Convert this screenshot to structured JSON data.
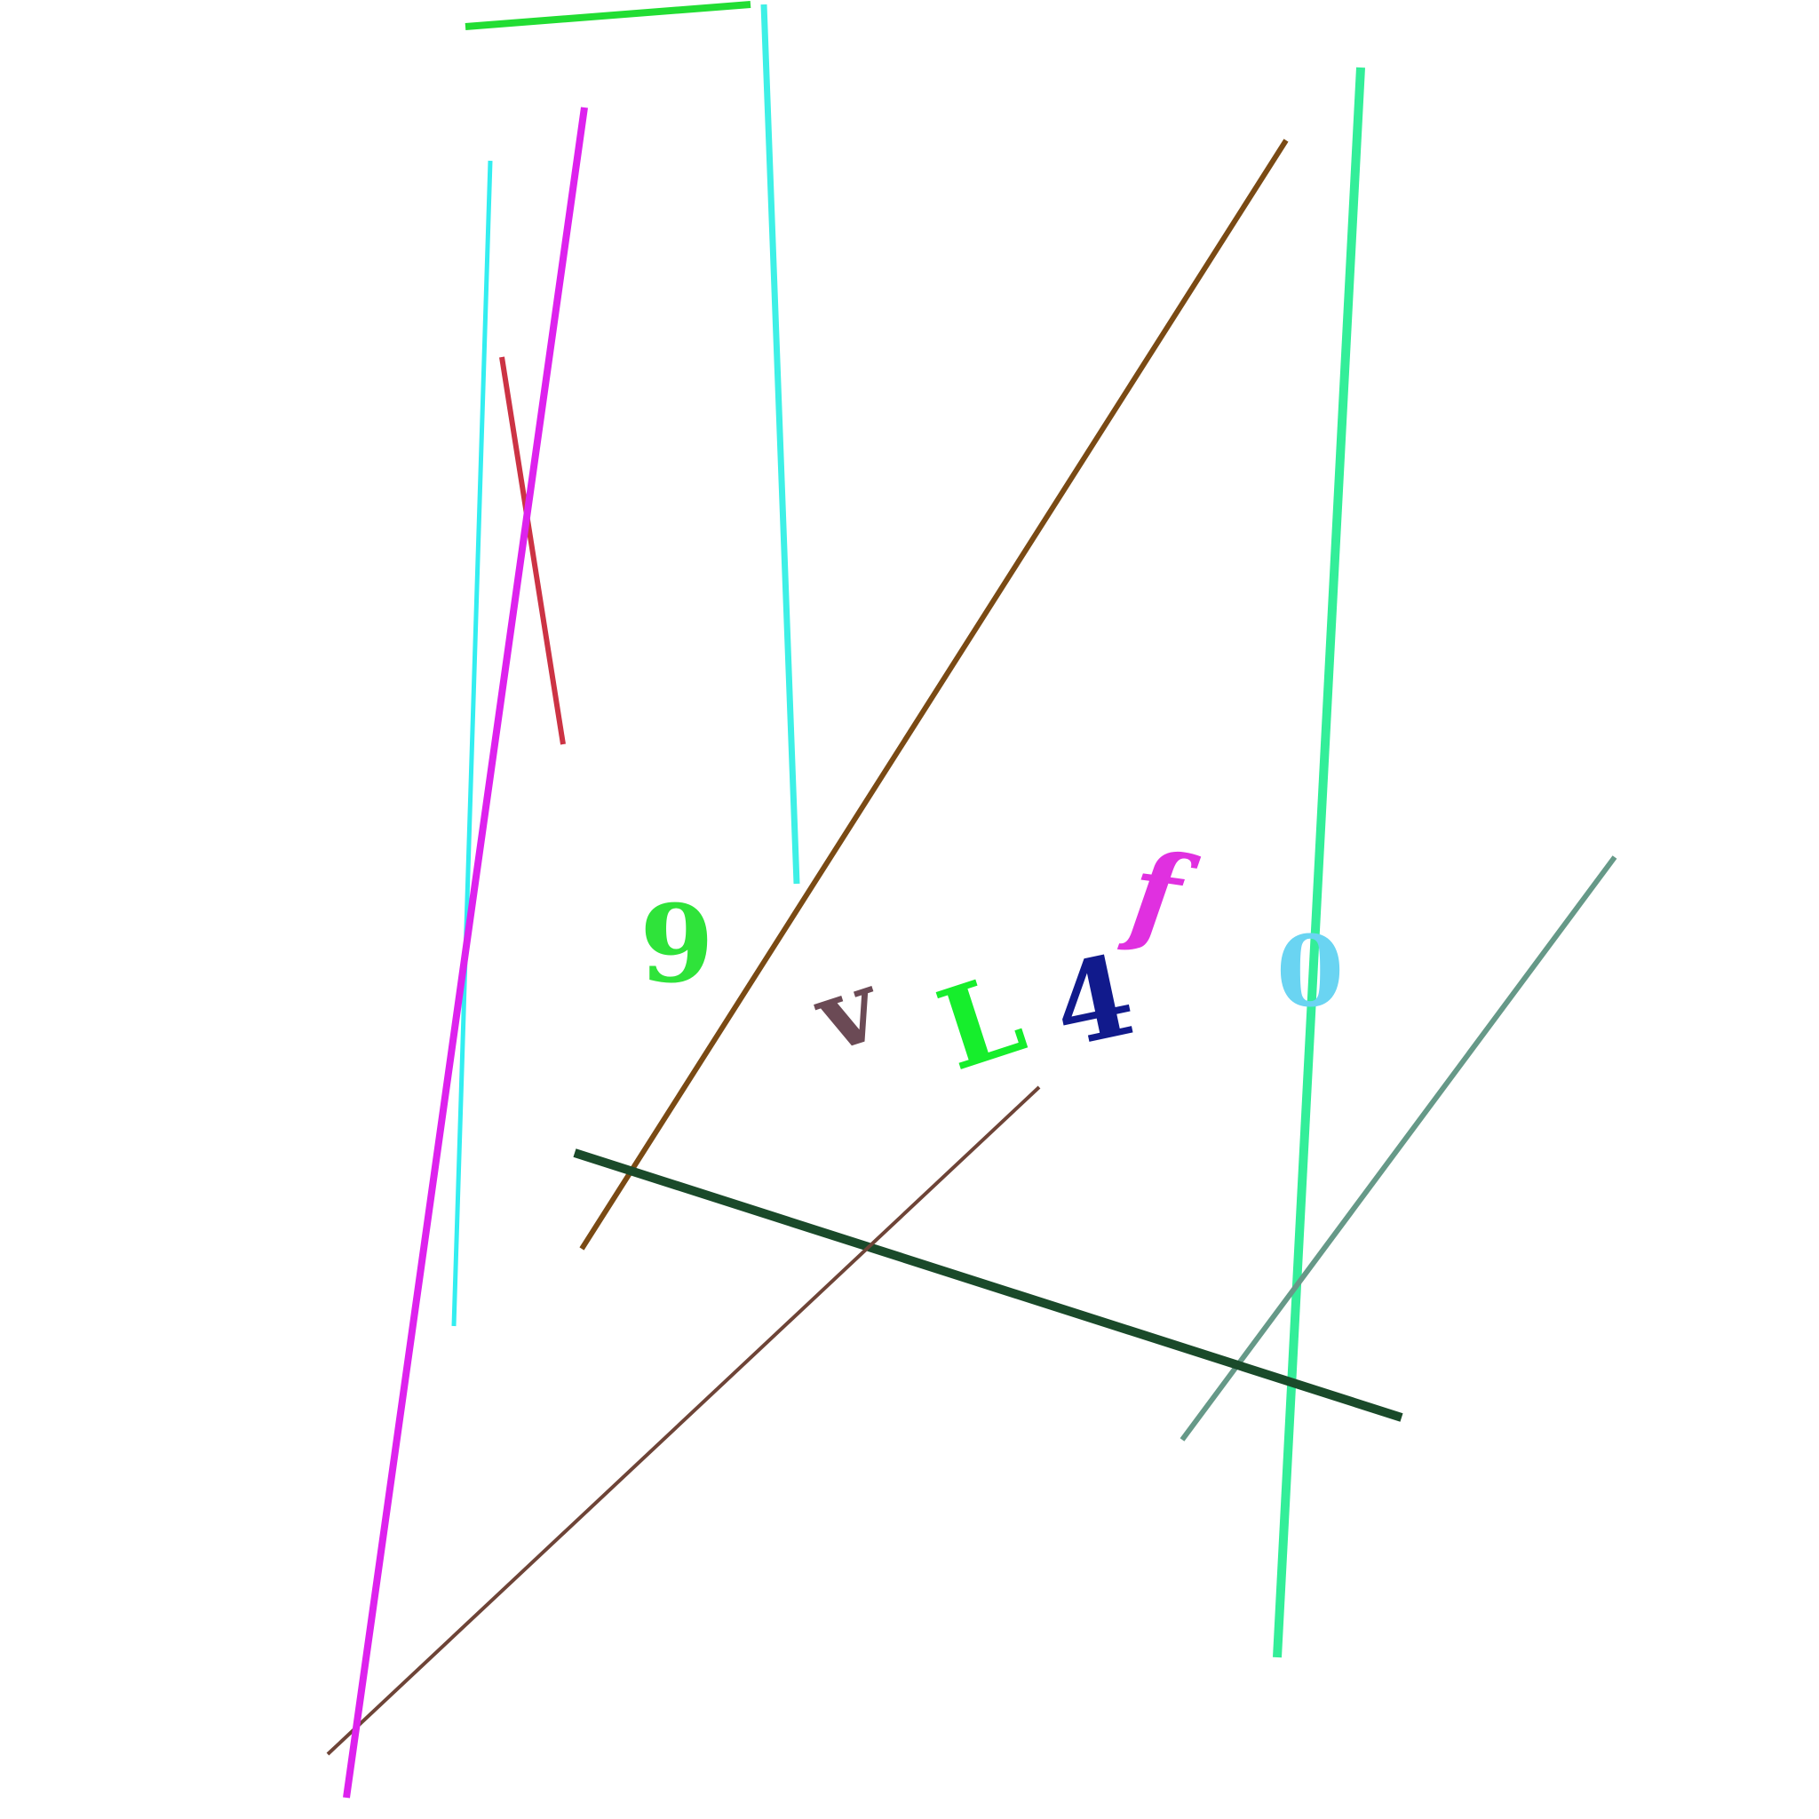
{
  "characters": [
    {
      "id": "char-9",
      "text": "9",
      "color": "#2fe33a"
    },
    {
      "id": "char-v",
      "text": "v",
      "color": "#6b4a55"
    },
    {
      "id": "char-L",
      "text": "L",
      "color": "#16ee2c"
    },
    {
      "id": "char-4",
      "text": "4",
      "color": "#111a8c"
    },
    {
      "id": "char-f",
      "text": "f",
      "color": "#e030e0"
    },
    {
      "id": "char-0",
      "text": "0",
      "color": "#6ad4f2"
    }
  ],
  "lines": [
    {
      "id": "line-green-top",
      "color": "#22dd33"
    },
    {
      "id": "line-cyan-a",
      "color": "#3ef0e6"
    },
    {
      "id": "line-cyan-b",
      "color": "#33eef0"
    },
    {
      "id": "line-magenta",
      "color": "#dd22ee"
    },
    {
      "id": "line-red",
      "color": "#cc3344"
    },
    {
      "id": "line-brown",
      "color": "#7a4a14"
    },
    {
      "id": "line-seafoam",
      "color": "#33ee99"
    },
    {
      "id": "line-slate-teal",
      "color": "#669988"
    },
    {
      "id": "line-dark-green",
      "color": "#1a4a2a"
    },
    {
      "id": "line-thin-brown",
      "color": "#6e4437"
    }
  ]
}
